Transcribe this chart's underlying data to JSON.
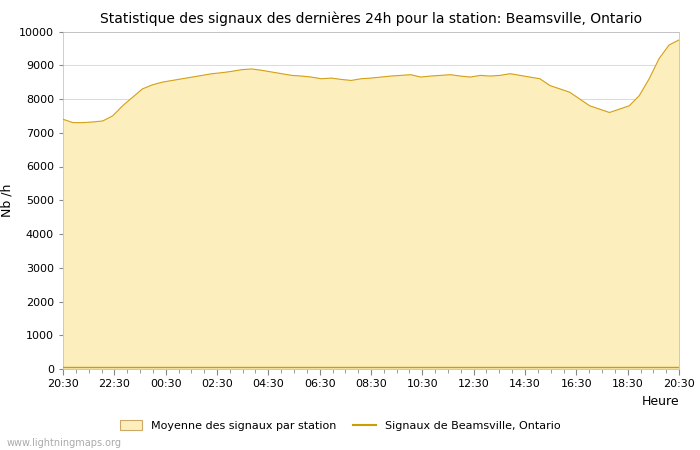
{
  "title": "Statistique des signaux des dernières 24h pour la station: Beamsville, Ontario",
  "xlabel": "Heure",
  "ylabel": "Nb /h",
  "ylim": [
    0,
    10000
  ],
  "yticks": [
    0,
    1000,
    2000,
    3000,
    4000,
    5000,
    6000,
    7000,
    8000,
    9000,
    10000
  ],
  "xtick_labels": [
    "20:30",
    "22:30",
    "00:30",
    "02:30",
    "04:30",
    "06:30",
    "08:30",
    "10:30",
    "12:30",
    "14:30",
    "16:30",
    "18:30",
    "20:30"
  ],
  "fill_color": "#FDEEBE",
  "line_color": "#D4A017",
  "signal_line_color": "#C8A000",
  "background_color": "#ffffff",
  "grid_color": "#cccccc",
  "watermark": "www.lightningmaps.org",
  "legend_fill_label": "Moyenne des signaux par station",
  "legend_line_label": "Signaux de Beamsville, Ontario",
  "avg_values": [
    7400,
    7300,
    7300,
    7320,
    7350,
    7500,
    7800,
    8050,
    8300,
    8420,
    8500,
    8550,
    8600,
    8650,
    8700,
    8750,
    8780,
    8820,
    8870,
    8890,
    8850,
    8800,
    8750,
    8700,
    8680,
    8650,
    8600,
    8620,
    8580,
    8550,
    8600,
    8620,
    8650,
    8680,
    8700,
    8720,
    8650,
    8680,
    8700,
    8720,
    8680,
    8650,
    8700,
    8680,
    8700,
    8750,
    8700,
    8650,
    8600,
    8400,
    8300,
    8200,
    8000,
    7800,
    7700,
    7600,
    7700,
    7800,
    8100,
    8600,
    9200,
    9600,
    9750
  ],
  "station_values": [
    50,
    50,
    50,
    50,
    50,
    50,
    50,
    50,
    50,
    50,
    50,
    50,
    50,
    50,
    50,
    50,
    50,
    50,
    50,
    50,
    50,
    50,
    50,
    50,
    50,
    50,
    50,
    50,
    50,
    50,
    50,
    50,
    50,
    50,
    50,
    50,
    50,
    50,
    50,
    50,
    50,
    50,
    50,
    50,
    50,
    50,
    50,
    50,
    50,
    50,
    50,
    50,
    50,
    50,
    50,
    50,
    50,
    50,
    50,
    50,
    50,
    50,
    50
  ],
  "title_fontsize": 10,
  "axis_fontsize": 8,
  "ylabel_fontsize": 9,
  "xlabel_fontsize": 9
}
